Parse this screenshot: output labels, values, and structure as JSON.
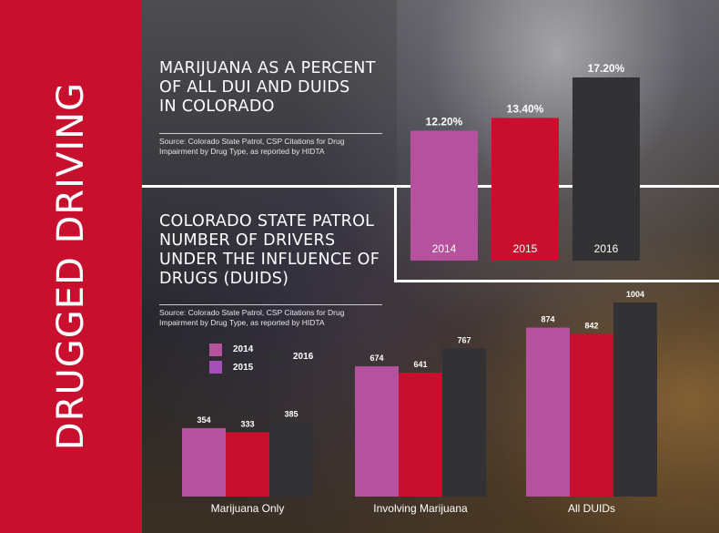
{
  "sidebar": {
    "title": "DRUGGED DRIVING"
  },
  "top": {
    "title_lines": [
      "MARIJUANA AS A PERCENT",
      "OF ALL DUI AND DUIDS",
      "IN COLORADO"
    ],
    "source_lines": [
      "Source: Colorado State Patrol, CSP Citations for Drug",
      "Impairment by Drug Type, as reported by HIDTA"
    ]
  },
  "bottom": {
    "title_lines": [
      "COLORADO STATE PATROL",
      "NUMBER OF DRIVERS",
      "UNDER THE INFLUENCE OF",
      "DRUGS (DUIDS)"
    ],
    "source_lines": [
      "Source: Colorado State Patrol, CSP Citations for Drug",
      "Impairment by Drug Type, as reported by HIDTA"
    ]
  },
  "legend": [
    {
      "label": "2014",
      "color": "#b6529d"
    },
    {
      "label": "2015",
      "color": "#a24fb7"
    },
    {
      "label": "2016",
      "color": "#323234"
    }
  ],
  "chart_data": [
    {
      "type": "bar",
      "title": "MARIJUANA AS A PERCENT OF ALL DUI AND DUIDS IN COLORADO",
      "categories": [
        "2014",
        "2015",
        "2016"
      ],
      "values": [
        12.2,
        13.4,
        17.2
      ],
      "value_labels": [
        "12.20%",
        "13.40%",
        "17.20%"
      ],
      "colors": [
        "#b6529d",
        "#c8102e",
        "#323234"
      ],
      "ylim": [
        0,
        17.2
      ]
    },
    {
      "type": "bar",
      "title": "COLORADO STATE PATROL NUMBER OF DRIVERS UNDER THE INFLUENCE OF DRUGS (DUIDS)",
      "categories": [
        "Marijuana Only",
        "Involving Marijuana",
        "All DUIDs"
      ],
      "series": [
        {
          "name": "2014",
          "values": [
            354,
            674,
            874
          ],
          "color": "#b6529d"
        },
        {
          "name": "2015",
          "values": [
            333,
            641,
            842
          ],
          "color": "#c8102e"
        },
        {
          "name": "2016",
          "values": [
            385,
            767,
            1004
          ],
          "color": "#323234"
        }
      ],
      "ylim": [
        0,
        1004
      ]
    }
  ]
}
